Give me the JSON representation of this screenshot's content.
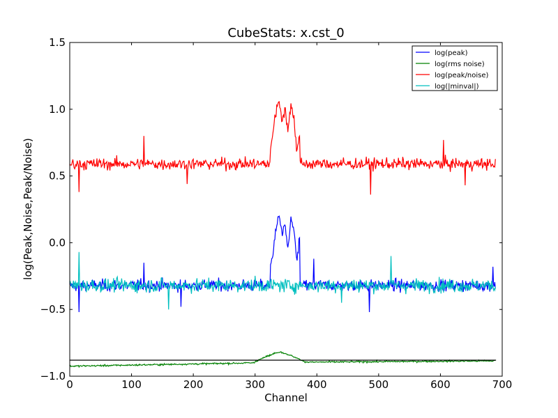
{
  "chart_data": {
    "type": "line",
    "title": "CubeStats: x.cst_0",
    "xlabel": "Channel",
    "ylabel": "log(Peak,Noise,Peak/Noise)",
    "xlim": [
      0,
      700
    ],
    "ylim": [
      -1.0,
      1.5
    ],
    "xticks": [
      0,
      100,
      200,
      300,
      400,
      500,
      600,
      700
    ],
    "yticks": [
      -1.0,
      -0.5,
      0.0,
      0.5,
      1.0,
      1.5
    ],
    "xtick_labels": [
      "0",
      "100",
      "200",
      "300",
      "400",
      "500",
      "600",
      "700"
    ],
    "ytick_labels": [
      "−1.0",
      "−0.5",
      "0.0",
      "0.5",
      "1.0",
      "1.5"
    ],
    "grid": false,
    "legend_position": "top-right",
    "n_channels": 690,
    "series": [
      {
        "name": "log(peak)",
        "color": "#0000ff",
        "baseline": -0.32,
        "noise": 0.055,
        "features": [
          {
            "range": [
              325,
              372
            ],
            "values": [
              -0.2,
              -0.05,
              0.12,
              0.22,
              0.05,
              0.15,
              -0.05,
              0.18,
              0.1,
              -0.15,
              0.03
            ]
          }
        ],
        "spikes": [
          [
            15,
            -0.52
          ],
          [
            120,
            -0.15
          ],
          [
            180,
            -0.48
          ],
          [
            395,
            -0.12
          ],
          [
            485,
            -0.52
          ],
          [
            685,
            -0.18
          ]
        ]
      },
      {
        "name": "log(rms noise)",
        "color": "#008000",
        "baseline": -0.9,
        "noise": 0.008,
        "features": [
          {
            "range": [
              300,
              380
            ],
            "values": [
              -0.89,
              -0.87,
              -0.85,
              -0.83,
              -0.82,
              -0.83,
              -0.85,
              -0.87,
              -0.89
            ]
          }
        ],
        "trend": [
          [
            0,
            -0.925
          ],
          [
            300,
            -0.9
          ],
          [
            380,
            -0.895
          ],
          [
            690,
            -0.885
          ]
        ]
      },
      {
        "name": "log(peak/noise)",
        "color": "#ff0000",
        "baseline": 0.59,
        "noise": 0.055,
        "features": [
          {
            "range": [
              325,
              372
            ],
            "values": [
              0.7,
              0.85,
              1.0,
              1.06,
              0.9,
              1.0,
              0.85,
              1.03,
              0.95,
              0.7,
              0.8
            ]
          }
        ],
        "spikes": [
          [
            15,
            0.38
          ],
          [
            120,
            0.8
          ],
          [
            190,
            0.44
          ],
          [
            487,
            0.36
          ],
          [
            605,
            0.77
          ],
          [
            640,
            0.43
          ]
        ]
      },
      {
        "name": "log(|minval|)",
        "color": "#00bfbf",
        "baseline": -0.32,
        "noise": 0.065,
        "features": [],
        "spikes": [
          [
            15,
            -0.07
          ],
          [
            160,
            -0.5
          ],
          [
            440,
            -0.45
          ],
          [
            520,
            -0.1
          ]
        ]
      }
    ],
    "reference_line": {
      "color": "#000000",
      "y": -0.88,
      "x": [
        0,
        690
      ]
    }
  }
}
